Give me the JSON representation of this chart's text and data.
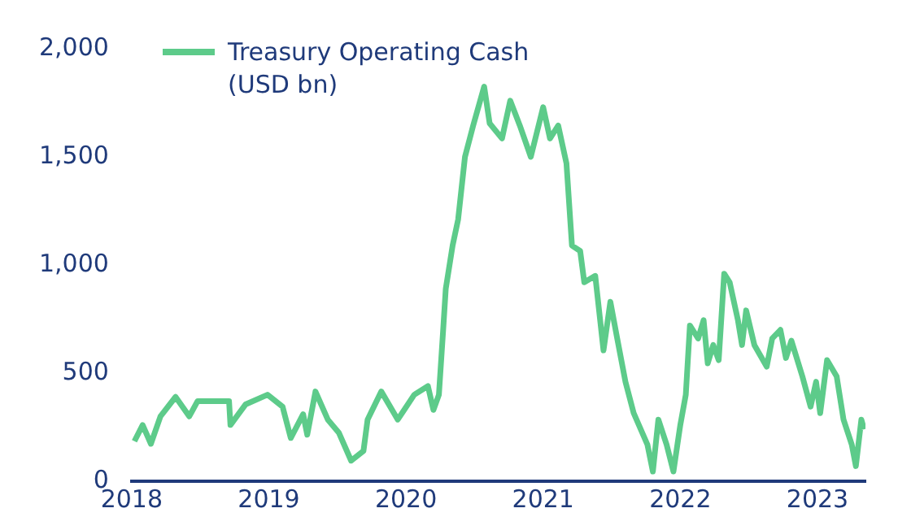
{
  "chart_data": {
    "type": "line",
    "x": [
      2018.02,
      2018.08,
      2018.14,
      2018.21,
      2018.32,
      2018.42,
      2018.48,
      2018.71,
      2018.72,
      2018.83,
      2018.99,
      2019.1,
      2019.16,
      2019.25,
      2019.28,
      2019.34,
      2019.43,
      2019.51,
      2019.6,
      2019.69,
      2019.72,
      2019.82,
      2019.94,
      2020.06,
      2020.16,
      2020.2,
      2020.24,
      2020.27,
      2020.29,
      2020.34,
      2020.38,
      2020.43,
      2020.49,
      2020.57,
      2020.61,
      2020.7,
      2020.76,
      2020.83,
      2020.91,
      2021.0,
      2021.05,
      2021.11,
      2021.17,
      2021.21,
      2021.27,
      2021.3,
      2021.38,
      2021.44,
      2021.49,
      2021.54,
      2021.6,
      2021.66,
      2021.76,
      2021.8,
      2021.84,
      2021.9,
      2021.95,
      2022.0,
      2022.04,
      2022.07,
      2022.13,
      2022.17,
      2022.2,
      2022.24,
      2022.28,
      2022.32,
      2022.36,
      2022.42,
      2022.45,
      2022.48,
      2022.54,
      2022.63,
      2022.67,
      2022.73,
      2022.77,
      2022.81,
      2022.89,
      2022.95,
      2022.99,
      2023.02,
      2023.07,
      2023.14,
      2023.19,
      2023.25,
      2023.28,
      2023.32,
      2023.34
    ],
    "series": [
      {
        "name": "Treasury Operating Cash (USD bn)",
        "color": "#5dcb8a",
        "values": [
          185,
          260,
          173,
          300,
          390,
          300,
          370,
          370,
          260,
          355,
          400,
          345,
          200,
          310,
          215,
          415,
          285,
          225,
          95,
          140,
          285,
          415,
          285,
          400,
          440,
          330,
          400,
          690,
          890,
          1090,
          1210,
          1500,
          1645,
          1825,
          1655,
          1585,
          1760,
          1645,
          1500,
          1730,
          1585,
          1645,
          1470,
          1090,
          1065,
          920,
          950,
          605,
          830,
          660,
          460,
          315,
          170,
          45,
          285,
          170,
          45,
          260,
          400,
          720,
          660,
          745,
          545,
          630,
          560,
          960,
          920,
          745,
          630,
          790,
          630,
          530,
          660,
          700,
          570,
          650,
          485,
          345,
          460,
          315,
          560,
          485,
          285,
          170,
          70,
          285,
          240
        ]
      }
    ],
    "xlim": [
      2018,
      2023.35
    ],
    "xticks": [
      2018,
      2019,
      2020,
      2021,
      2022,
      2023
    ],
    "ylim": [
      0,
      2000
    ],
    "yticks": [
      {
        "value": 0,
        "label": "0"
      },
      {
        "value": 500,
        "label": "500"
      },
      {
        "value": 1000,
        "label": "1,000"
      },
      {
        "value": 1500,
        "label": "1,500"
      },
      {
        "value": 2000,
        "label": "2,000"
      }
    ],
    "grid": false,
    "legend": "top left",
    "marker": "none",
    "line_style": "solid"
  }
}
